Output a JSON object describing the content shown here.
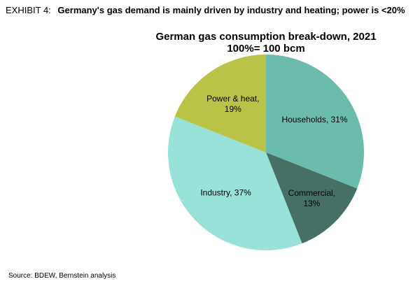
{
  "exhibit": {
    "label": "EXHIBIT 4:",
    "headline": "Germany's gas demand is mainly driven by industry and heating; power is <20%"
  },
  "chart_data": {
    "type": "pie",
    "title": "German gas consumption break-down, 2021",
    "subtitle": "100%= 100 bcm",
    "slices": [
      {
        "name": "Households",
        "value": 31,
        "label_line1": "Households, 31%",
        "label_line2": "",
        "color": "#6bbcad"
      },
      {
        "name": "Commercial",
        "value": 13,
        "label_line1": "Commercial,",
        "label_line2": "13%",
        "color": "#466f66"
      },
      {
        "name": "Industry",
        "value": 37,
        "label_line1": "Industry, 37%",
        "label_line2": "",
        "color": "#98e2da"
      },
      {
        "name": "Power & heat",
        "value": 19,
        "label_line1": "Power & heat,",
        "label_line2": "19%",
        "color": "#b9c347"
      }
    ],
    "start_angle_deg": 0,
    "direction": "clockwise"
  },
  "source": "Source: BDEW, Bernstein analysis"
}
